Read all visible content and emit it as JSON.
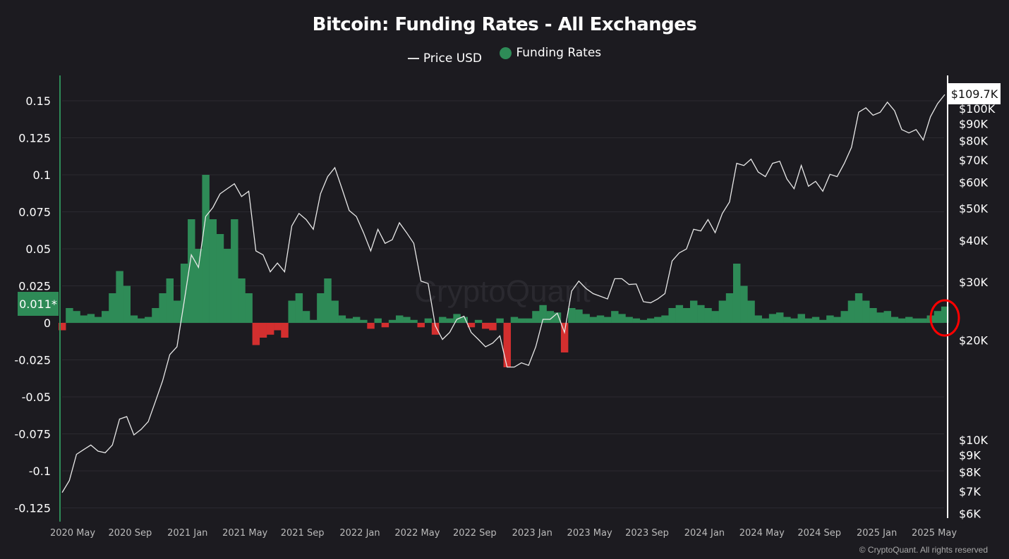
{
  "chart_data": {
    "type": "bar+line",
    "title": "Bitcoin: Funding Rates - All Exchanges",
    "legend": [
      "Price USD",
      "Funding Rates"
    ],
    "legend_placement": "top-center",
    "grid": true,
    "colors": {
      "price": "#e8e8e8",
      "positive": "#2e8b57",
      "negative": "#d32f2f",
      "left_axis": "#2e8b57",
      "highlight": "#ff0000"
    },
    "x_tick_labels": [
      "2020 May",
      "2020 Sep",
      "2021 Jan",
      "2021 May",
      "2021 Sep",
      "2022 Jan",
      "2022 May",
      "2022 Sep",
      "2023 Jan",
      "2023 May",
      "2023 Sep",
      "2024 Jan",
      "2024 May",
      "2024 Sep",
      "2025 Jan",
      "2025 May"
    ],
    "left_axis": {
      "ticks": [
        "0.15",
        "0.125",
        "0.1",
        "0.075",
        "0.05",
        "0.025",
        "0",
        "-0.025",
        "-0.05",
        "-0.075",
        "-0.1",
        "-0.125"
      ],
      "ylim": [
        -0.13,
        0.155
      ],
      "current_label": "0.011*"
    },
    "right_axis": {
      "scale": "log",
      "ticks": [
        {
          "v": 100000,
          "l": "$100K"
        },
        {
          "v": 90000,
          "l": "$90K"
        },
        {
          "v": 80000,
          "l": "$80K"
        },
        {
          "v": 70000,
          "l": "$70K"
        },
        {
          "v": 60000,
          "l": "$60K"
        },
        {
          "v": 50000,
          "l": "$50K"
        },
        {
          "v": 40000,
          "l": "$40K"
        },
        {
          "v": 30000,
          "l": "$30K"
        },
        {
          "v": 20000,
          "l": "$20K"
        },
        {
          "v": 10000,
          "l": "$10K"
        },
        {
          "v": 9000,
          "l": "$9K"
        },
        {
          "v": 8000,
          "l": "$8K"
        },
        {
          "v": 7000,
          "l": "$7K"
        },
        {
          "v": 6000,
          "l": "$6K"
        }
      ],
      "current_label": "$109.7K"
    },
    "period": "semi-monthly, 2020 Apr to 2025 May",
    "price": [
      6900,
      7500,
      9000,
      9300,
      9600,
      9200,
      9100,
      9600,
      11500,
      11700,
      10300,
      10700,
      11300,
      13000,
      15000,
      18000,
      19000,
      26000,
      36000,
      33000,
      47000,
      50000,
      55000,
      57000,
      59000,
      54000,
      56000,
      37000,
      36000,
      32000,
      34000,
      32000,
      44000,
      48000,
      46000,
      43000,
      55000,
      62000,
      66000,
      57000,
      49000,
      47000,
      42000,
      37000,
      43000,
      39000,
      40000,
      45000,
      42000,
      39000,
      30000,
      29500,
      22000,
      20000,
      21000,
      23000,
      23500,
      21000,
      20000,
      19000,
      19500,
      20500,
      16500,
      16500,
      17000,
      16700,
      19000,
      23000,
      23000,
      24000,
      21000,
      28000,
      30000,
      28500,
      27500,
      27000,
      26500,
      30500,
      30500,
      29300,
      29400,
      26000,
      25800,
      26500,
      27500,
      34500,
      36500,
      37500,
      43000,
      42500,
      46000,
      42000,
      48000,
      52000,
      68000,
      67000,
      70000,
      64000,
      62000,
      68000,
      69000,
      61000,
      57000,
      67000,
      58000,
      60000,
      56000,
      63000,
      62000,
      68000,
      76000,
      97000,
      100000,
      95000,
      97000,
      104000,
      98000,
      86000,
      84000,
      86000,
      80000,
      94000,
      103000,
      109700
    ],
    "funding": [
      -0.005,
      0.01,
      0.008,
      0.005,
      0.006,
      0.004,
      0.008,
      0.02,
      0.035,
      0.025,
      0.005,
      0.003,
      0.004,
      0.01,
      0.02,
      0.03,
      0.015,
      0.04,
      0.07,
      0.05,
      0.1,
      0.07,
      0.06,
      0.05,
      0.07,
      0.03,
      0.02,
      -0.015,
      -0.01,
      -0.008,
      -0.005,
      -0.01,
      0.015,
      0.02,
      0.008,
      0.002,
      0.02,
      0.03,
      0.015,
      0.005,
      0.003,
      0.004,
      0.002,
      -0.004,
      0.003,
      -0.003,
      0.002,
      0.005,
      0.004,
      0.002,
      -0.003,
      0.003,
      -0.008,
      0.004,
      0.003,
      0.006,
      0.004,
      -0.003,
      0.002,
      -0.004,
      -0.005,
      0.003,
      -0.03,
      0.004,
      0.003,
      0.003,
      0.008,
      0.012,
      0.008,
      0.007,
      -0.02,
      0.01,
      0.009,
      0.006,
      0.004,
      0.005,
      0.004,
      0.008,
      0.006,
      0.004,
      0.003,
      0.002,
      0.003,
      0.004,
      0.005,
      0.01,
      0.012,
      0.01,
      0.015,
      0.012,
      0.01,
      0.008,
      0.015,
      0.02,
      0.04,
      0.025,
      0.015,
      0.005,
      0.003,
      0.006,
      0.007,
      0.004,
      0.003,
      0.006,
      0.003,
      0.004,
      0.002,
      0.005,
      0.004,
      0.008,
      0.015,
      0.02,
      0.015,
      0.01,
      0.007,
      0.008,
      0.004,
      0.003,
      0.004,
      0.003,
      0.003,
      0.005,
      0.008,
      0.011
    ]
  },
  "watermark": "CryptoQuant",
  "credit": "© CryptoQuant. All rights reserved"
}
